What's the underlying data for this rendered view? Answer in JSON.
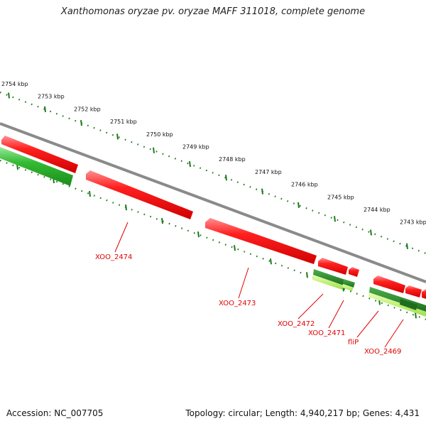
{
  "title": "Xanthomonas oryzae pv. oryzae MAFF 311018, complete genome",
  "accession": "Accession: NC_007705",
  "summary": "Topology: circular; Length: 4,940,217 bp; Genes: 4,431",
  "colors": {
    "backbone": "#808080",
    "cds_forward": "#ee1c1c",
    "cds_reverse": "#2fae2f",
    "gene_label": "#e00000",
    "tick": "#1f7a1f"
  },
  "ticks": [
    {
      "label": "2754 kbp"
    },
    {
      "label": "2753 kbp"
    },
    {
      "label": "2752 kbp"
    },
    {
      "label": "2751 kbp"
    },
    {
      "label": "2750 kbp"
    },
    {
      "label": "2749 kbp"
    },
    {
      "label": "2748 kbp"
    },
    {
      "label": "2747 kbp"
    },
    {
      "label": "2746 kbp"
    },
    {
      "label": "2745 kbp"
    },
    {
      "label": "2744 kbp"
    },
    {
      "label": "2743 kbp"
    }
  ],
  "genes": [
    {
      "label": "XOO_2474"
    },
    {
      "label": "XOO_2473"
    },
    {
      "label": "XOO_2472"
    },
    {
      "label": "XOO_2471"
    },
    {
      "label": "fliP"
    },
    {
      "label": "XOO_2469"
    }
  ]
}
